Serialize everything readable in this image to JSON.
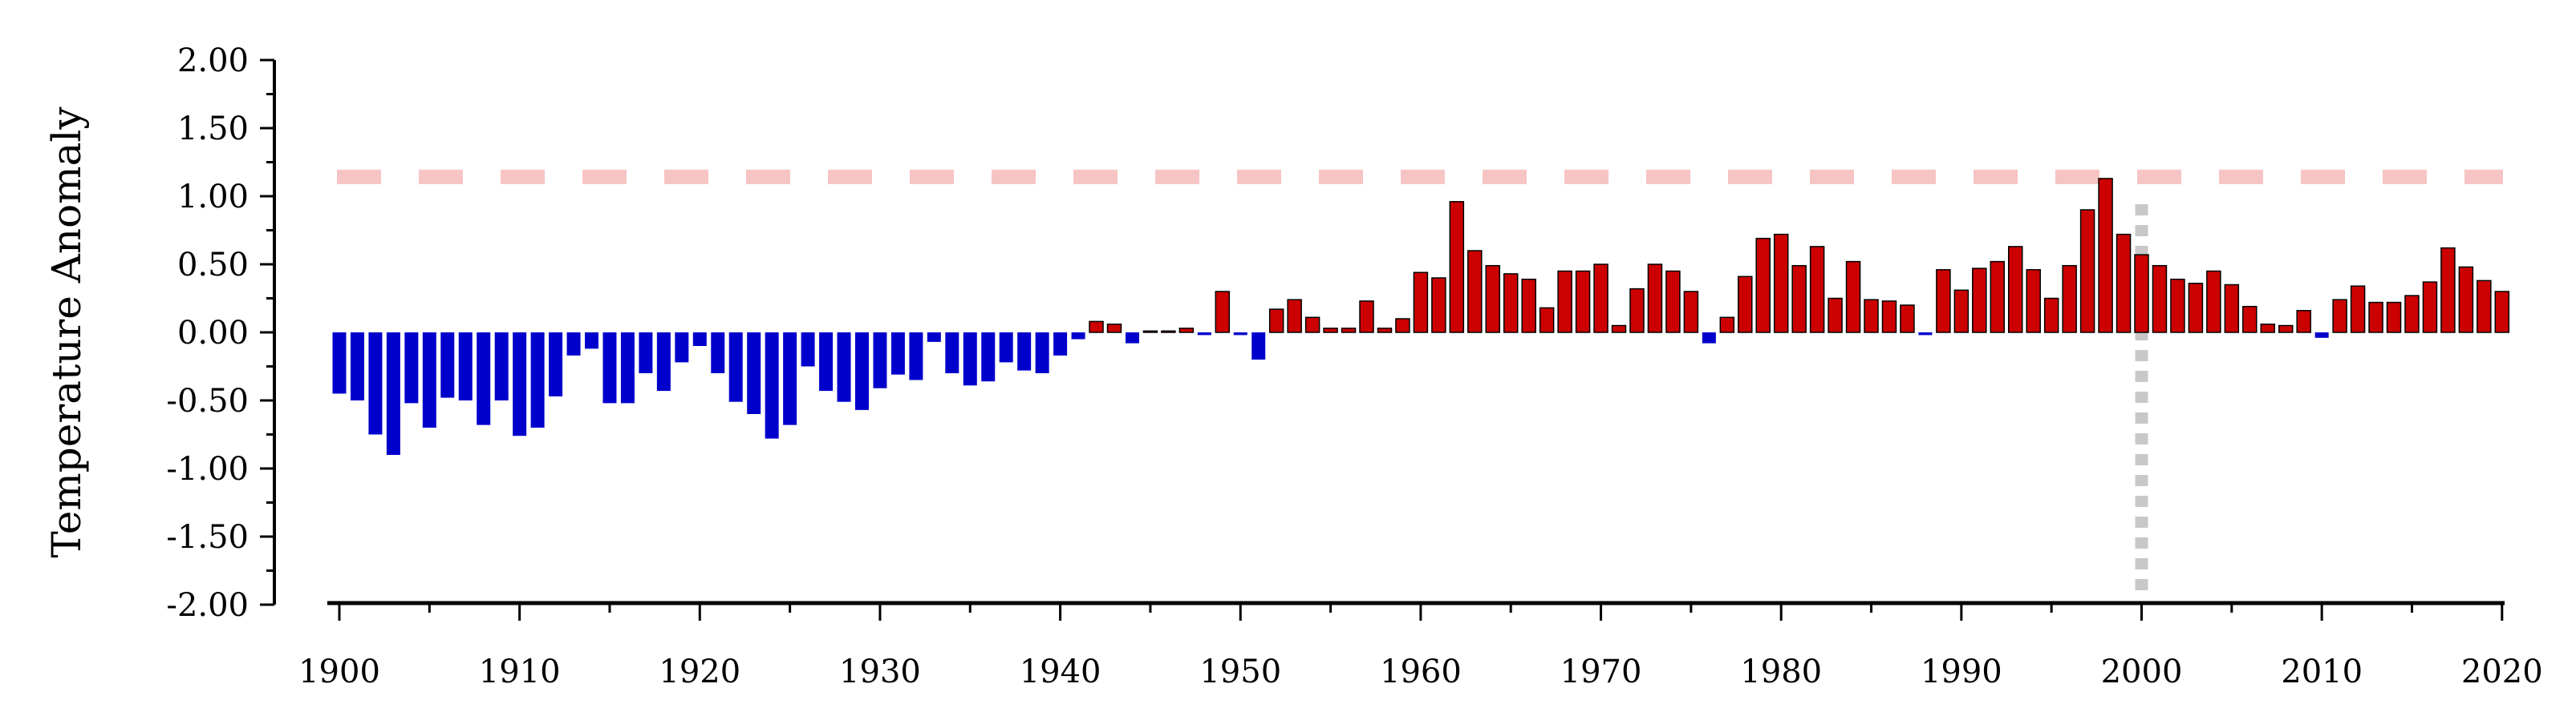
{
  "chart_data": {
    "type": "bar",
    "title": "",
    "xlabel": "",
    "ylabel": "Temperature Anomaly",
    "xlim": [
      1899,
      2021
    ],
    "ylim": [
      -2.0,
      2.0
    ],
    "x_ticks": [
      1900,
      1910,
      1920,
      1930,
      1940,
      1950,
      1960,
      1970,
      1980,
      1990,
      2000,
      2010,
      2020
    ],
    "y_ticks": [
      "2.00",
      "1.50",
      "1.00",
      "0.50",
      "0.00",
      "-0.50",
      "-1.00",
      "-1.50",
      "-2.00"
    ],
    "grid": false,
    "legend": "none",
    "colors": {
      "positive": "#cc0000",
      "negative": "#0000cc",
      "bar_edge": "#000000",
      "threshold_line": "#f7c4c4",
      "vertical_marker": "#c8c8c8"
    },
    "reference_lines": {
      "horizontal_dashed_y": 1.13,
      "vertical_dotted_x": 2000
    },
    "years": [
      1900,
      1901,
      1902,
      1903,
      1904,
      1905,
      1906,
      1907,
      1908,
      1909,
      1910,
      1911,
      1912,
      1913,
      1914,
      1915,
      1916,
      1917,
      1918,
      1919,
      1920,
      1921,
      1922,
      1923,
      1924,
      1925,
      1926,
      1927,
      1928,
      1929,
      1930,
      1931,
      1932,
      1933,
      1934,
      1935,
      1936,
      1937,
      1938,
      1939,
      1940,
      1941,
      1942,
      1943,
      1944,
      1945,
      1946,
      1947,
      1948,
      1949,
      1950,
      1951,
      1952,
      1953,
      1954,
      1955,
      1956,
      1957,
      1958,
      1959,
      1960,
      1961,
      1962,
      1963,
      1964,
      1965,
      1966,
      1967,
      1968,
      1969,
      1970,
      1971,
      1972,
      1973,
      1974,
      1975,
      1976,
      1977,
      1978,
      1979,
      1980,
      1981,
      1982,
      1983,
      1984,
      1985,
      1986,
      1987,
      1988,
      1989,
      1990,
      1991,
      1992,
      1993,
      1994,
      1995,
      1996,
      1997,
      1998,
      1999,
      2000,
      2001,
      2002,
      2003,
      2004,
      2005,
      2006,
      2007,
      2008,
      2009,
      2010,
      2011,
      2012,
      2013,
      2014,
      2015,
      2016,
      2017,
      2018,
      2019,
      2020
    ],
    "values": [
      -0.45,
      -0.5,
      -0.75,
      -0.9,
      -0.52,
      -0.7,
      -0.48,
      -0.5,
      -0.68,
      -0.5,
      -0.76,
      -0.7,
      -0.47,
      -0.17,
      -0.12,
      -0.52,
      -0.52,
      -0.3,
      -0.43,
      -0.22,
      -0.1,
      -0.3,
      -0.51,
      -0.6,
      -0.78,
      -0.68,
      -0.25,
      -0.43,
      -0.51,
      -0.57,
      -0.41,
      -0.31,
      -0.35,
      -0.07,
      -0.3,
      -0.39,
      -0.36,
      -0.22,
      -0.28,
      -0.3,
      -0.17,
      -0.05,
      0.08,
      0.06,
      -0.08,
      0.01,
      0.01,
      0.03,
      -0.02,
      0.3,
      -0.02,
      -0.2,
      0.17,
      0.24,
      0.11,
      0.03,
      0.03,
      0.23,
      0.03,
      0.1,
      0.44,
      0.4,
      0.96,
      0.6,
      0.49,
      0.43,
      0.39,
      0.18,
      0.45,
      0.45,
      0.5,
      0.05,
      0.32,
      0.5,
      0.45,
      0.3,
      -0.08,
      0.11,
      0.41,
      0.69,
      0.72,
      0.49,
      0.63,
      0.25,
      0.52,
      0.24,
      0.23,
      0.2,
      -0.02,
      0.46,
      0.31,
      0.47,
      0.52,
      0.63,
      0.46,
      0.25,
      0.49,
      0.9,
      1.13,
      0.72,
      0.57,
      0.49,
      0.39,
      0.36,
      0.45,
      0.35,
      0.19,
      0.06,
      0.05,
      0.16,
      -0.04,
      0.24,
      0.34,
      0.22,
      0.22,
      0.27,
      0.37,
      0.62,
      0.48,
      0.38,
      0.3
    ]
  }
}
